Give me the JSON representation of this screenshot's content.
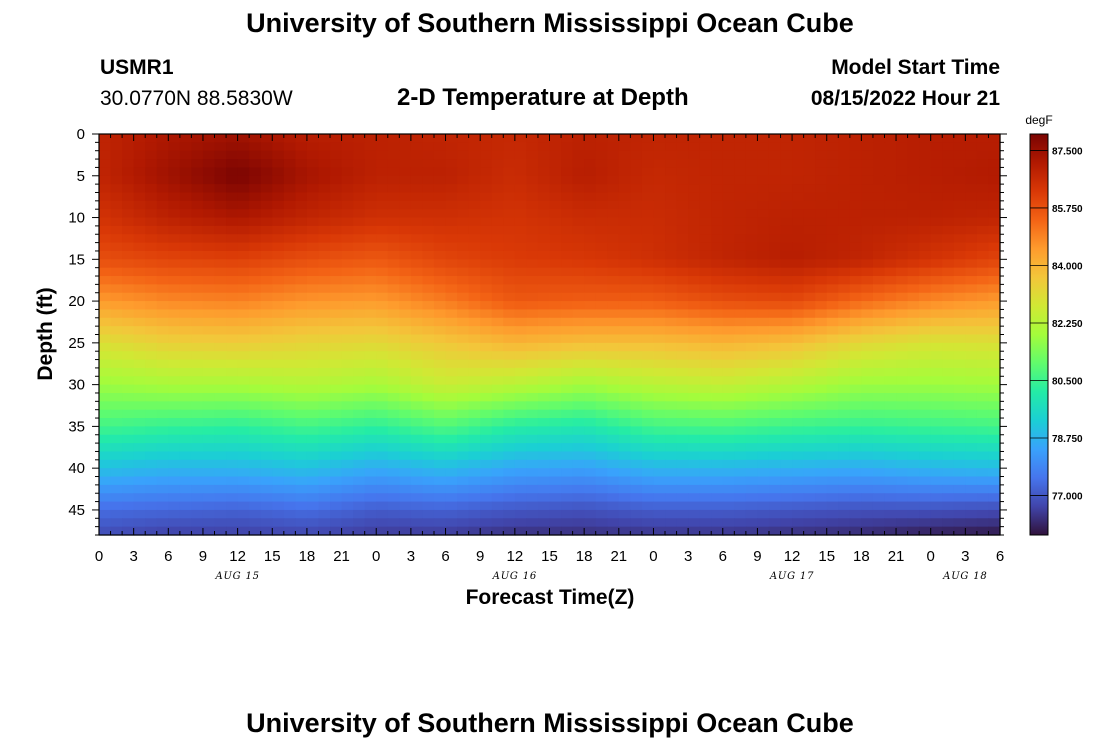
{
  "header": {
    "top_title": "University of Southern Mississippi Ocean Cube",
    "bottom_title": "University of Southern Mississippi Ocean Cube",
    "station_id": "USMR1",
    "coords": "30.0770N  88.5830W",
    "model_label": "Model Start Time",
    "model_time": "08/15/2022 Hour 21"
  },
  "colors": {
    "cmap": [
      "#30123b",
      "#4145ab",
      "#4675ed",
      "#39a2fc",
      "#1bcfd4",
      "#24eca6",
      "#61fc6c",
      "#a4fc3b",
      "#d1e834",
      "#f3c63a",
      "#fe9b2d",
      "#f36315",
      "#d93806",
      "#b11901",
      "#7a0402"
    ]
  },
  "chart_data": {
    "type": "heatmap",
    "title": "2-D Temperature at Depth",
    "xlabel": "Forecast Time(Z)",
    "ylabel": "Depth (ft)",
    "colorbar_label": "degF",
    "x_range_hours": [
      0,
      78
    ],
    "x_tick_labels": [
      "0",
      "3",
      "6",
      "9",
      "12",
      "15",
      "18",
      "21",
      "0",
      "3",
      "6",
      "9",
      "12",
      "15",
      "18",
      "21",
      "0",
      "3",
      "6",
      "9",
      "12",
      "15",
      "18",
      "21",
      "0",
      "3",
      "6"
    ],
    "date_labels": [
      {
        "label": "AUG 15",
        "hour": 12
      },
      {
        "label": "AUG 16",
        "hour": 36
      },
      {
        "label": "AUG 17",
        "hour": 60
      },
      {
        "label": "AUG 18",
        "hour": 75
      }
    ],
    "ylim": [
      48,
      0
    ],
    "y_ticks": [
      0,
      5,
      10,
      15,
      20,
      25,
      30,
      35,
      40,
      45
    ],
    "y_tick_labels": [
      "0",
      "5",
      "10",
      "15",
      "20",
      "25",
      "30",
      "35",
      "40",
      "45"
    ],
    "colorbar_range": [
      75.8,
      88.0
    ],
    "colorbar_ticks": [
      87.5,
      85.75,
      84.0,
      82.25,
      80.5,
      78.75,
      77.0
    ],
    "colorbar_tick_labels": [
      "87.500",
      "85.750",
      "84.000",
      "82.250",
      "80.500",
      "78.750",
      "77.000"
    ],
    "depths": [
      0,
      5,
      10,
      15,
      20,
      25,
      30,
      35,
      40,
      45,
      48
    ],
    "hours": [
      0,
      6,
      12,
      18,
      24,
      30,
      36,
      42,
      48,
      54,
      60,
      66,
      72,
      78
    ],
    "values": [
      [
        86.8,
        87.2,
        87.4,
        87.0,
        86.9,
        86.8,
        86.7,
        86.9,
        86.8,
        86.8,
        86.8,
        86.9,
        87.0,
        87.0
      ],
      [
        86.8,
        87.4,
        88.0,
        87.3,
        86.9,
        86.9,
        86.6,
        87.0,
        86.7,
        86.8,
        86.8,
        86.9,
        87.0,
        87.1
      ],
      [
        86.4,
        86.9,
        87.2,
        86.8,
        86.5,
        86.5,
        86.4,
        86.6,
        86.6,
        86.8,
        86.9,
        86.9,
        86.9,
        86.8
      ],
      [
        85.8,
        86.0,
        86.1,
        85.8,
        85.6,
        86.0,
        86.2,
        86.3,
        86.5,
        86.8,
        87.0,
        86.8,
        86.4,
        86.0
      ],
      [
        84.5,
        84.8,
        84.9,
        84.6,
        84.5,
        85.0,
        85.6,
        85.5,
        85.5,
        85.8,
        85.9,
        85.3,
        84.8,
        84.5
      ],
      [
        83.0,
        83.4,
        83.5,
        83.3,
        83.2,
        83.6,
        84.0,
        83.8,
        83.8,
        84.0,
        83.8,
        83.2,
        82.9,
        83.0
      ],
      [
        81.8,
        82.0,
        82.0,
        82.2,
        82.0,
        82.6,
        82.3,
        81.9,
        82.3,
        82.5,
        82.2,
        81.8,
        81.8,
        81.9
      ],
      [
        80.6,
        80.4,
        80.3,
        80.6,
        80.3,
        80.8,
        80.2,
        80.0,
        80.6,
        80.7,
        80.5,
        80.4,
        80.5,
        80.6
      ],
      [
        79.0,
        78.8,
        78.8,
        79.0,
        78.6,
        78.9,
        78.5,
        78.4,
        78.8,
        78.8,
        78.7,
        78.6,
        78.8,
        78.9
      ],
      [
        77.4,
        77.3,
        77.2,
        77.4,
        77.1,
        77.2,
        77.0,
        76.9,
        77.1,
        77.1,
        77.0,
        76.9,
        76.9,
        76.8
      ],
      [
        76.8,
        76.6,
        76.6,
        76.7,
        76.5,
        76.5,
        76.3,
        76.3,
        76.4,
        76.4,
        76.3,
        76.2,
        76.0,
        75.9
      ]
    ]
  }
}
